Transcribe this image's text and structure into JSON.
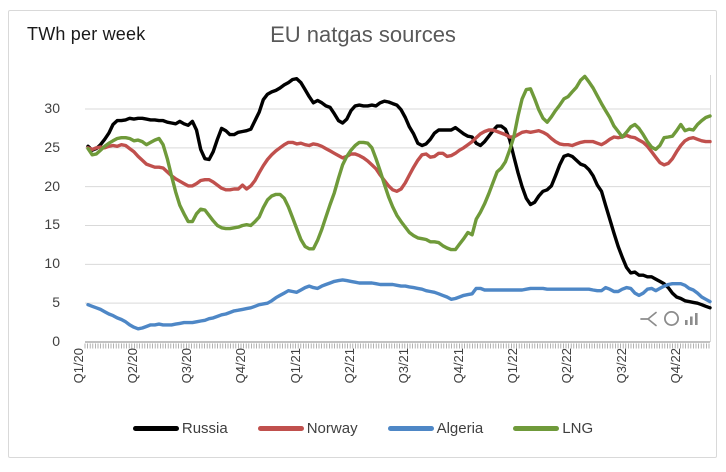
{
  "header": {
    "y_axis_label": "TWh per week",
    "title": "EU natgas sources"
  },
  "colors": {
    "russia": "#000000",
    "norway": "#C0504D",
    "algeria": "#4E87C6",
    "lng": "#6F9A3A",
    "grid": "#D9D9D9",
    "axis": "#9E9E9E",
    "frame_border": "#D9D9D9",
    "tick_label": "#404040",
    "icon_gray": "#8C8C8C"
  },
  "corner_icons": [
    {
      "name": "funnel-icon"
    },
    {
      "name": "circle-icon"
    },
    {
      "name": "bar-chart-icon"
    }
  ],
  "chart_data": {
    "type": "line",
    "title": "EU natgas sources",
    "ylabel": "TWh per week",
    "xlabel": "",
    "ylim": [
      0,
      35
    ],
    "yticks": [
      0,
      5,
      10,
      15,
      20,
      25,
      30
    ],
    "grid": "horizontal",
    "legend_position": "bottom",
    "x_unit": "week",
    "x_tick_labels": [
      "Q1/20",
      "Q2/20",
      "Q3/20",
      "Q4/20",
      "Q1/21",
      "Q2/21",
      "Q3/21",
      "Q4/21",
      "Q1/22",
      "Q2/22",
      "Q3/22",
      "Q4/22"
    ],
    "series": [
      {
        "name": "Russia",
        "color": "#000000",
        "values": [
          25.2,
          24.7,
          24.9,
          25.4,
          26.1,
          26.9,
          28.0,
          28.5,
          28.5,
          28.6,
          28.8,
          28.7,
          28.8,
          28.8,
          28.7,
          28.6,
          28.6,
          28.5,
          28.5,
          28.3,
          28.2,
          28.1,
          28.4,
          28.1,
          27.9,
          28.4,
          27.3,
          24.8,
          23.6,
          23.5,
          24.5,
          26.1,
          27.5,
          27.2,
          26.7,
          26.7,
          27.0,
          27.1,
          27.2,
          27.4,
          28.5,
          29.6,
          31.2,
          31.9,
          32.2,
          32.4,
          32.7,
          33.1,
          33.4,
          33.8,
          33.9,
          33.4,
          32.5,
          31.6,
          30.8,
          31.1,
          30.8,
          30.4,
          30.2,
          29.4,
          28.5,
          28.2,
          28.7,
          29.8,
          30.4,
          30.5,
          30.4,
          30.4,
          30.5,
          30.4,
          30.8,
          31.0,
          30.9,
          30.7,
          30.5,
          29.9,
          28.9,
          27.7,
          26.8,
          25.6,
          25.3,
          25.5,
          26.1,
          26.9,
          27.3,
          27.3,
          27.3,
          27.3,
          27.6,
          27.2,
          26.8,
          26.5,
          26.4,
          25.6,
          25.3,
          25.8,
          26.5,
          27.2,
          27.8,
          27.8,
          27.4,
          26.1,
          23.9,
          21.8,
          20.0,
          18.5,
          17.7,
          18.0,
          18.8,
          19.4,
          19.6,
          20.1,
          21.4,
          22.8,
          23.9,
          24.1,
          23.9,
          23.4,
          22.9,
          22.7,
          22.2,
          21.4,
          20.2,
          19.4,
          17.6,
          15.8,
          14.0,
          12.3,
          10.9,
          9.6,
          8.9,
          9.0,
          8.6,
          8.6,
          8.4,
          8.4,
          8.1,
          7.8,
          7.5,
          7.0,
          6.3,
          5.8,
          5.6,
          5.3,
          5.2,
          5.1,
          5.0,
          4.8,
          4.6,
          4.4
        ]
      },
      {
        "name": "Norway",
        "color": "#C0504D",
        "values": [
          25.0,
          24.8,
          25.0,
          25.1,
          25.0,
          25.2,
          25.3,
          25.2,
          25.4,
          25.3,
          24.9,
          24.5,
          23.9,
          23.4,
          22.9,
          22.7,
          22.5,
          22.5,
          22.4,
          21.9,
          21.4,
          21.0,
          20.7,
          20.4,
          20.1,
          20.1,
          20.4,
          20.8,
          20.9,
          20.9,
          20.6,
          20.2,
          19.8,
          19.6,
          19.6,
          19.7,
          19.7,
          20.2,
          19.7,
          20.1,
          20.8,
          21.8,
          22.7,
          23.5,
          24.1,
          24.6,
          25.0,
          25.4,
          25.7,
          25.7,
          25.5,
          25.6,
          25.4,
          25.3,
          25.5,
          25.4,
          25.2,
          24.9,
          24.6,
          24.3,
          24.0,
          23.7,
          23.9,
          24.2,
          24.2,
          24.0,
          23.7,
          23.3,
          22.8,
          22.3,
          21.5,
          20.8,
          20.1,
          19.6,
          19.4,
          19.7,
          20.5,
          21.5,
          22.5,
          23.4,
          24.1,
          24.2,
          23.8,
          23.9,
          24.3,
          24.3,
          23.9,
          24.0,
          24.3,
          24.7,
          25.0,
          25.4,
          25.8,
          26.3,
          26.8,
          27.1,
          27.3,
          27.3,
          27.1,
          26.9,
          26.7,
          26.4,
          26.4,
          26.7,
          27.0,
          27.1,
          27.0,
          27.1,
          27.2,
          27.0,
          26.7,
          26.2,
          25.8,
          25.5,
          25.4,
          25.4,
          25.3,
          25.5,
          25.7,
          25.8,
          25.8,
          25.8,
          25.6,
          25.4,
          25.7,
          26.1,
          26.4,
          26.3,
          26.4,
          26.6,
          26.4,
          26.3,
          26.0,
          25.7,
          25.2,
          24.5,
          23.8,
          23.1,
          22.8,
          23.0,
          23.6,
          24.5,
          25.3,
          25.9,
          26.2,
          26.3,
          26.1,
          25.9,
          25.8,
          25.8
        ]
      },
      {
        "name": "Algeria",
        "color": "#4E87C6",
        "values": [
          4.8,
          4.6,
          4.4,
          4.2,
          3.9,
          3.6,
          3.4,
          3.1,
          2.9,
          2.6,
          2.2,
          1.9,
          1.7,
          1.8,
          2.0,
          2.2,
          2.2,
          2.3,
          2.2,
          2.2,
          2.2,
          2.3,
          2.4,
          2.5,
          2.5,
          2.5,
          2.6,
          2.7,
          2.8,
          3.0,
          3.1,
          3.3,
          3.5,
          3.6,
          3.8,
          4.0,
          4.1,
          4.2,
          4.3,
          4.4,
          4.6,
          4.8,
          4.9,
          5.0,
          5.3,
          5.7,
          6.0,
          6.3,
          6.6,
          6.5,
          6.4,
          6.7,
          7.0,
          7.2,
          7.0,
          6.9,
          7.2,
          7.4,
          7.6,
          7.8,
          7.9,
          8.0,
          7.9,
          7.8,
          7.7,
          7.6,
          7.6,
          7.6,
          7.6,
          7.5,
          7.4,
          7.4,
          7.4,
          7.4,
          7.3,
          7.2,
          7.2,
          7.1,
          7.0,
          6.9,
          6.8,
          6.6,
          6.5,
          6.4,
          6.2,
          6.0,
          5.8,
          5.5,
          5.6,
          5.8,
          6.0,
          6.1,
          6.2,
          6.9,
          6.9,
          6.7,
          6.7,
          6.7,
          6.7,
          6.7,
          6.7,
          6.7,
          6.7,
          6.7,
          6.7,
          6.8,
          6.9,
          6.9,
          6.9,
          6.9,
          6.8,
          6.8,
          6.8,
          6.8,
          6.8,
          6.8,
          6.8,
          6.8,
          6.8,
          6.8,
          6.8,
          6.7,
          6.6,
          6.6,
          7.0,
          6.8,
          6.5,
          6.5,
          6.8,
          7.0,
          6.9,
          6.3,
          6.0,
          6.3,
          6.8,
          6.9,
          6.6,
          6.9,
          7.2,
          7.4,
          7.5,
          7.5,
          7.5,
          7.3,
          6.9,
          6.7,
          6.3,
          5.8,
          5.5,
          5.2
        ]
      },
      {
        "name": "LNG",
        "color": "#6F9A3A",
        "values": [
          24.9,
          24.1,
          24.2,
          24.7,
          25.2,
          25.6,
          25.9,
          26.2,
          26.3,
          26.3,
          26.2,
          25.9,
          26.0,
          25.8,
          25.4,
          25.7,
          26.0,
          26.2,
          25.4,
          23.6,
          21.4,
          19.3,
          17.6,
          16.5,
          15.5,
          15.5,
          16.5,
          17.1,
          17.0,
          16.3,
          15.6,
          15.0,
          14.7,
          14.6,
          14.6,
          14.7,
          14.8,
          15.0,
          15.1,
          15.0,
          15.5,
          16.1,
          17.3,
          18.3,
          18.8,
          19.0,
          19.0,
          18.5,
          17.4,
          16.0,
          14.6,
          13.2,
          12.3,
          12.0,
          12.0,
          13.1,
          14.5,
          16.1,
          17.7,
          19.2,
          21.1,
          22.8,
          23.9,
          24.7,
          25.3,
          25.7,
          25.7,
          25.6,
          25.0,
          23.6,
          22.0,
          20.3,
          18.7,
          17.4,
          16.3,
          15.5,
          14.8,
          14.1,
          13.7,
          13.4,
          13.3,
          13.2,
          12.9,
          12.9,
          12.8,
          12.4,
          12.1,
          11.9,
          11.9,
          12.6,
          13.3,
          14.1,
          13.8,
          15.8,
          16.7,
          17.8,
          19.1,
          20.5,
          21.9,
          22.4,
          23.2,
          24.7,
          26.4,
          29.1,
          31.3,
          32.5,
          32.6,
          31.3,
          29.9,
          28.8,
          28.3,
          29.0,
          29.8,
          30.5,
          31.3,
          31.6,
          32.2,
          32.8,
          33.7,
          34.2,
          33.5,
          32.7,
          31.7,
          30.7,
          29.8,
          28.9,
          27.8,
          27.1,
          26.4,
          27.0,
          27.7,
          28.0,
          27.5,
          26.7,
          25.8,
          25.1,
          24.8,
          25.3,
          26.3,
          26.4,
          26.5,
          27.2,
          28.0,
          27.2,
          27.4,
          27.3,
          28.0,
          28.5,
          28.9,
          29.1
        ]
      }
    ]
  }
}
